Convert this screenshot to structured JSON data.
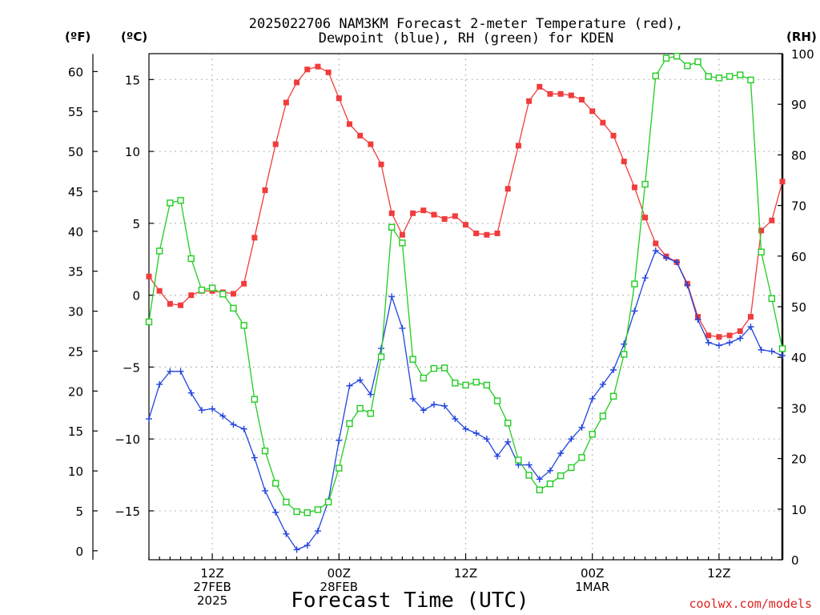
{
  "chart_data": {
    "type": "line",
    "title_lines": [
      "2025022706 NAM3KM Forecast 2-meter Temperature (red),",
      "Dewpoint (blue), RH (green) for KDEN"
    ],
    "unit_labels": {
      "fahrenheit": "(ºF)",
      "celsius": "(ºC)",
      "rh": "(RH)"
    },
    "xlabel": "Forecast Time (UTC)",
    "credit": "coolwx.com/models",
    "x_hours_from_start": {
      "min": 0,
      "max": 60
    },
    "x_ticks": [
      {
        "x": 6,
        "lines": [
          "12Z",
          "27FEB",
          "2025"
        ]
      },
      {
        "x": 18,
        "lines": [
          "00Z",
          "28FEB"
        ]
      },
      {
        "x": 30,
        "lines": [
          "12Z"
        ]
      },
      {
        "x": 42,
        "lines": [
          "00Z",
          "1MAR"
        ]
      },
      {
        "x": 54,
        "lines": [
          "12Z"
        ]
      }
    ],
    "x": [
      0,
      1,
      2,
      3,
      4,
      5,
      6,
      7,
      8,
      9,
      10,
      11,
      12,
      13,
      14,
      15,
      16,
      17,
      18,
      19,
      20,
      21,
      22,
      23,
      24,
      25,
      26,
      27,
      28,
      29,
      30,
      31,
      32,
      33,
      34,
      35,
      36,
      37,
      38,
      39,
      40,
      41,
      42,
      43,
      44,
      45,
      46,
      47,
      48,
      49,
      50,
      51,
      52,
      53,
      54,
      55,
      56,
      57,
      58,
      59,
      60
    ],
    "y_left_celsius": {
      "min": -18.4,
      "max": 16.8,
      "ticks": [
        -15,
        -10,
        -5,
        0,
        5,
        10,
        15
      ]
    },
    "y_left_fahrenheit": {
      "ticks": [
        0,
        5,
        10,
        15,
        20,
        25,
        30,
        35,
        40,
        45,
        50,
        55,
        60
      ]
    },
    "y_right_rh": {
      "min": 0,
      "max": 100,
      "ticks": [
        0,
        10,
        20,
        30,
        40,
        50,
        60,
        70,
        80,
        90,
        100
      ]
    },
    "grid": true,
    "series": [
      {
        "name": "Temperature",
        "axis": "celsius",
        "color": "#f03c3c",
        "marker": "filled-square",
        "values": [
          1.3,
          0.3,
          -0.6,
          -0.7,
          0.0,
          0.3,
          0.3,
          0.2,
          0.1,
          0.8,
          4.0,
          7.3,
          10.5,
          13.4,
          14.8,
          15.7,
          15.9,
          15.5,
          13.7,
          11.9,
          11.1,
          10.5,
          9.1,
          5.7,
          4.2,
          5.7,
          5.9,
          5.6,
          5.3,
          5.5,
          4.9,
          4.3,
          4.2,
          4.3,
          7.4,
          10.4,
          13.5,
          14.5,
          14.0,
          14.0,
          13.9,
          13.6,
          12.8,
          12.0,
          11.1,
          9.3,
          7.5,
          5.4,
          3.6,
          2.7,
          2.3,
          0.8,
          -1.5,
          -2.8,
          -2.9,
          -2.8,
          -2.5,
          -1.5,
          4.5,
          5.2,
          7.9
        ]
      },
      {
        "name": "Dewpoint",
        "axis": "celsius",
        "color": "#2244dd",
        "marker": "plus",
        "values": [
          -8.6,
          -6.2,
          -5.3,
          -5.3,
          -6.8,
          -8.0,
          -7.9,
          -8.4,
          -9.0,
          -9.3,
          -11.3,
          -13.6,
          -15.1,
          -16.6,
          -17.7,
          -17.4,
          -16.4,
          -14.3,
          -10.1,
          -6.3,
          -5.9,
          -6.9,
          -3.7,
          -0.1,
          -2.3,
          -7.2,
          -8.0,
          -7.6,
          -7.7,
          -8.6,
          -9.3,
          -9.6,
          -10.0,
          -11.2,
          -10.2,
          -11.8,
          -11.8,
          -12.8,
          -12.2,
          -11.0,
          -10.0,
          -9.2,
          -7.2,
          -6.2,
          -5.2,
          -3.4,
          -1.1,
          1.2,
          3.1,
          2.6,
          2.3,
          0.7,
          -1.7,
          -3.3,
          -3.5,
          -3.3,
          -3.0,
          -2.2,
          -3.8,
          -3.9,
          -4.2
        ]
      },
      {
        "name": "RH",
        "axis": "rh",
        "color": "#22cc22",
        "marker": "open-square",
        "values": [
          47,
          61,
          70.5,
          71,
          59.5,
          53.3,
          53.7,
          52.5,
          49.7,
          46.3,
          31.7,
          21.5,
          15.1,
          11.4,
          9.5,
          9.3,
          9.9,
          11.4,
          18.1,
          26.9,
          29.9,
          28.9,
          40.1,
          65.7,
          62.6,
          39.6,
          35.9,
          37.8,
          37.9,
          34.9,
          34.5,
          35.1,
          34.5,
          31.4,
          27.0,
          19.7,
          16.7,
          13.8,
          15.0,
          16.6,
          18.2,
          20.2,
          24.8,
          28.4,
          32.3,
          40.6,
          54.5,
          74.2,
          95.6,
          99.1,
          99.5,
          97.6,
          98.4,
          95.5,
          95.2,
          95.5,
          95.8,
          94.8,
          60.8,
          51.6,
          41.7
        ]
      }
    ]
  }
}
